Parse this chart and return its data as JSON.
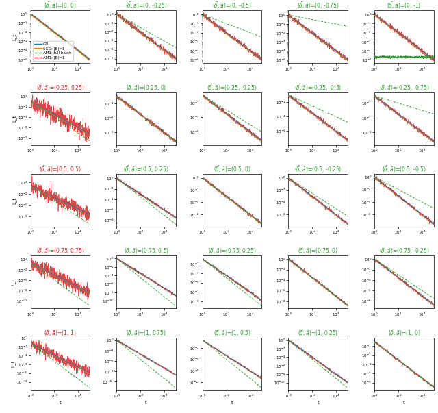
{
  "rows": [
    {
      "delta": 0.0,
      "abar_values": [
        0.0,
        -0.25,
        -0.5,
        -0.75,
        -1.0
      ]
    },
    {
      "delta": 0.25,
      "abar_values": [
        0.25,
        0.0,
        -0.25,
        -0.5,
        -0.75
      ]
    },
    {
      "delta": 0.5,
      "abar_values": [
        0.5,
        0.25,
        0.0,
        -0.25,
        -0.5
      ]
    },
    {
      "delta": 0.75,
      "abar_values": [
        0.75,
        0.5,
        0.25,
        0.0,
        -0.25
      ]
    },
    {
      "delta": 1.0,
      "abar_values": [
        1.0,
        0.75,
        0.5,
        0.25,
        0.0
      ]
    }
  ],
  "n_points": 500,
  "t_min_exp": 0,
  "t_max_exp": 5,
  "y_label": "L_t",
  "x_label": "t",
  "legend_labels": [
    "GD",
    "SGD: |B|=1",
    "AM1: full-batch",
    "AM1: |B|=1"
  ],
  "line_colors": [
    "#1f77b4",
    "#ff7f0e",
    "#2ca02c",
    "#d62728"
  ],
  "figsize": [
    6.4,
    6.03
  ],
  "dpi": 100
}
